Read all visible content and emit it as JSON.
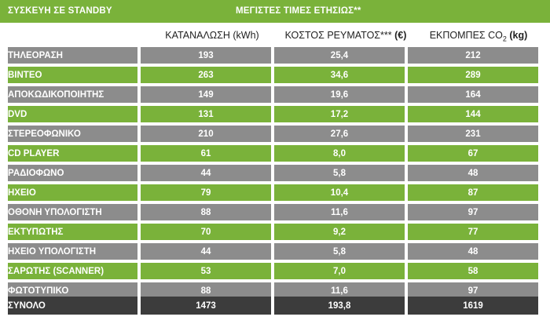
{
  "header": {
    "left_title": "ΣΥΣΚΕΥΗ ΣΕ STANDBY",
    "center_title": "ΜΕΓΙΣΤΕΣ ΤΙΜΕΣ ΕΤΗΣΙΩΣ**"
  },
  "columns": {
    "consumption": "ΚΑΤΑΝΑΛΩΣΗ (kWh)",
    "cost_prefix": "ΚΟΣΤΟΣ ΡΕΥΜΑΤΟΣ***",
    "cost_unit": "(€)",
    "emissions_prefix": "ΕΚΠΟΜΠΕΣ CO",
    "emissions_sub": "2",
    "emissions_unit": "(kg)"
  },
  "rows": [
    {
      "device": "ΤΗΛΕΟΡΑΣΗ",
      "kwh": "193",
      "cost": "25,4",
      "co2": "212"
    },
    {
      "device": "ΒΙΝΤΕΟ",
      "kwh": "263",
      "cost": "34,6",
      "co2": "289"
    },
    {
      "device": "ΑΠΟΚΩΔΙΚΟΠΟΙΗΤΗΣ",
      "kwh": "149",
      "cost": "19,6",
      "co2": "164"
    },
    {
      "device": "DVD",
      "kwh": "131",
      "cost": "17,2",
      "co2": "144"
    },
    {
      "device": "ΣΤΕΡΕΟΦΩΝΙΚΟ",
      "kwh": "210",
      "cost": "27,6",
      "co2": "231"
    },
    {
      "device": "CD PLAYER",
      "kwh": "61",
      "cost": "8,0",
      "co2": "67"
    },
    {
      "device": "ΡΑΔΙΟΦΩΝΟ",
      "kwh": "44",
      "cost": "5,8",
      "co2": "48"
    },
    {
      "device": "ΗΧΕΙΟ",
      "kwh": "79",
      "cost": "10,4",
      "co2": "87"
    },
    {
      "device": "ΟΘΟΝΗ ΥΠΟΛΟΓΙΣΤΗ",
      "kwh": "88",
      "cost": "11,6",
      "co2": "97"
    },
    {
      "device": "ΕΚΤΥΠΩΤΗΣ",
      "kwh": "70",
      "cost": "9,2",
      "co2": "77"
    },
    {
      "device": "ΗΧΕΙΟ ΥΠΟΛΟΓΙΣΤΗ",
      "kwh": "44",
      "cost": "5,8",
      "co2": "48"
    },
    {
      "device": "ΣΑΡΩΤΗΣ (SCANNER)",
      "kwh": "53",
      "cost": "7,0",
      "co2": "58"
    },
    {
      "device": "ΦΩΤΟΤΥΠΙΚΟ",
      "kwh": "88",
      "cost": "11,6",
      "co2": "97"
    }
  ],
  "total": {
    "label": "ΣΥΝΟΛΟ",
    "kwh": "1473",
    "cost": "193,8",
    "co2": "1619"
  },
  "colors": {
    "green": "#7ab23a",
    "gray": "#8c8c8c",
    "dark": "#3c3c3c"
  }
}
